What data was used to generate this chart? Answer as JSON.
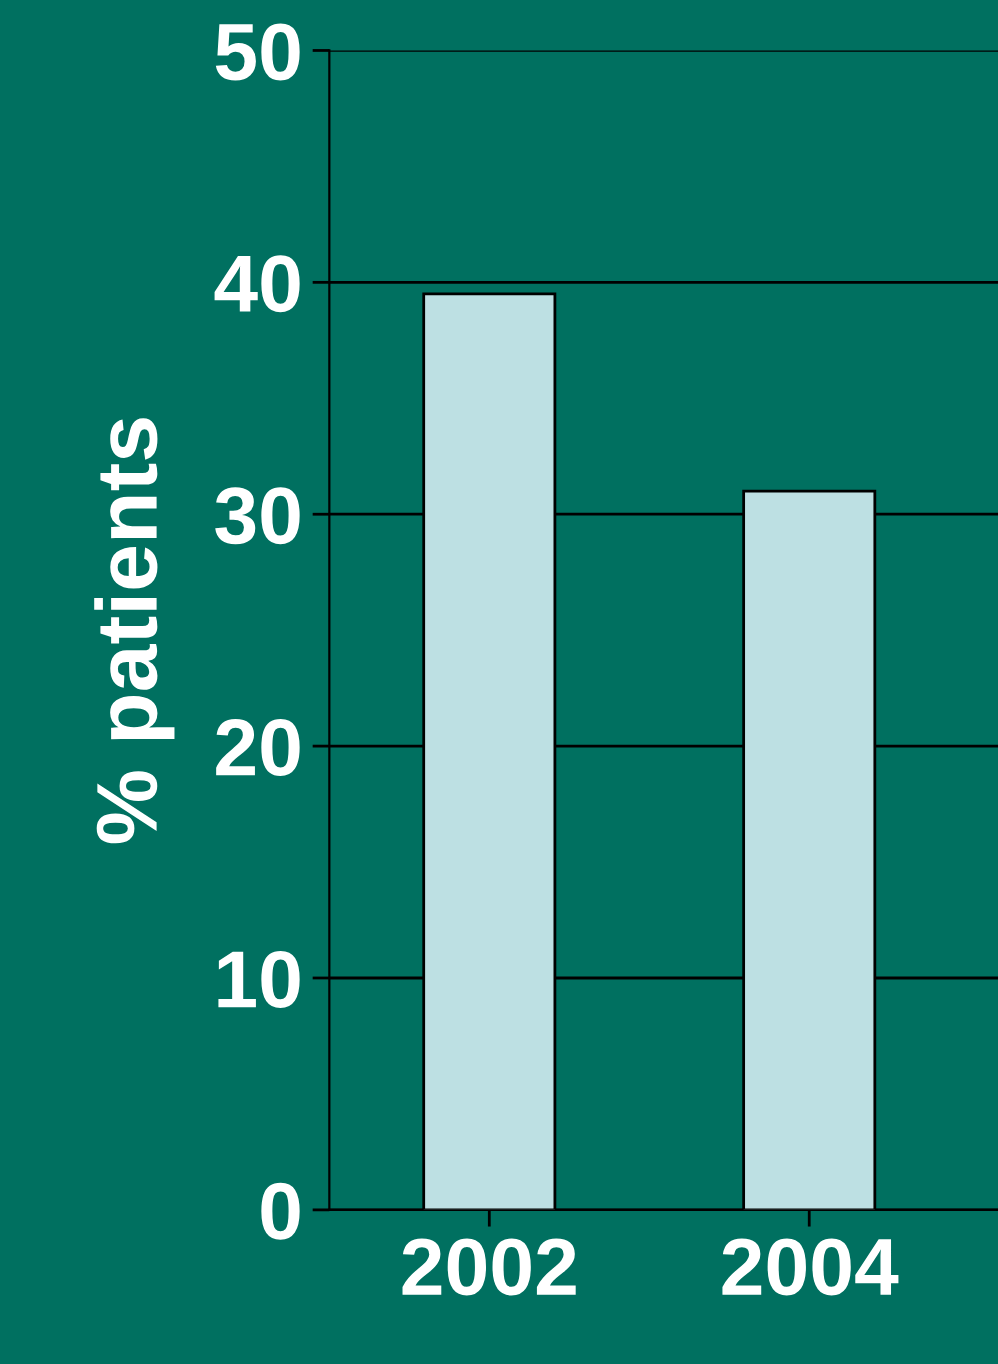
{
  "chart_data": {
    "type": "bar",
    "ylabel": "% patients",
    "categories": [
      "2002",
      "2004"
    ],
    "values": [
      39.5,
      31
    ],
    "color": "#bde0e3",
    "ylim": [
      0,
      50
    ],
    "yticks": [
      0,
      10,
      20,
      30,
      40,
      50
    ],
    "grid": "y"
  }
}
